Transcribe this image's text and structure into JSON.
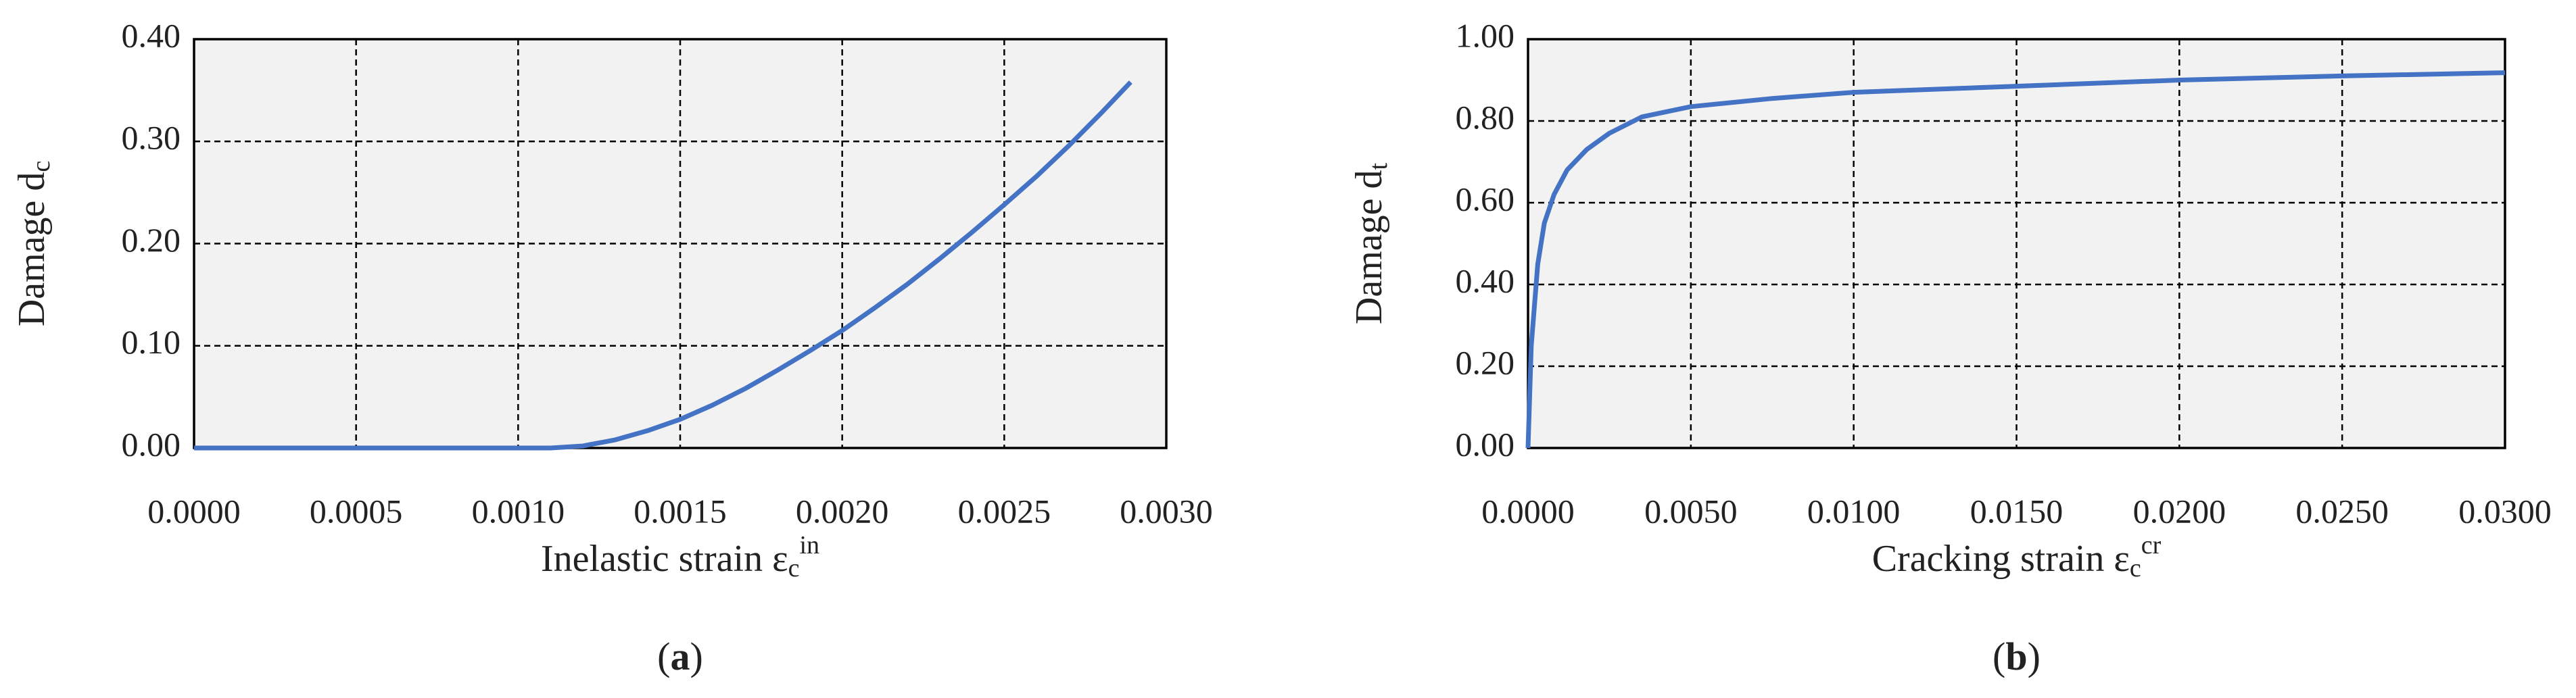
{
  "chart_data": [
    {
      "type": "line",
      "xlabel": [
        "Inelastic strain ε",
        "c",
        "in"
      ],
      "ylabel": [
        "Damage d",
        "c"
      ],
      "panel": [
        "(",
        "a",
        ")"
      ],
      "x": [
        0,
        0.0005,
        0.001,
        0.0011,
        0.0012,
        0.0013,
        0.0014,
        0.0015,
        0.0016,
        0.0017,
        0.0018,
        0.0019,
        0.002,
        0.0021,
        0.0022,
        0.0023,
        0.0024,
        0.0025,
        0.0026,
        0.0027,
        0.0028,
        0.00289
      ],
      "series": [
        {
          "color": "#4472c4",
          "values": [
            0,
            0,
            0,
            0,
            0.002,
            0.008,
            0.017,
            0.028,
            0.042,
            0.058,
            0.076,
            0.095,
            0.115,
            0.137,
            0.16,
            0.185,
            0.211,
            0.238,
            0.266,
            0.296,
            0.328,
            0.358
          ]
        }
      ],
      "xlim": [
        0,
        0.003
      ],
      "xticks": [
        {
          "value": 0,
          "label": "0.0000"
        },
        {
          "value": 0.0005,
          "label": "0.0005"
        },
        {
          "value": 0.001,
          "label": "0.0010"
        },
        {
          "value": 0.0015,
          "label": "0.0015"
        },
        {
          "value": 0.002,
          "label": "0.0020"
        },
        {
          "value": 0.0025,
          "label": "0.0025"
        },
        {
          "value": 0.003,
          "label": "0.0030"
        }
      ],
      "ylim": [
        0,
        0.4
      ],
      "yticks": [
        {
          "value": 0,
          "label": "0.00"
        },
        {
          "value": 0.1,
          "label": "0.10"
        },
        {
          "value": 0.2,
          "label": "0.20"
        },
        {
          "value": 0.3,
          "label": "0.30"
        },
        {
          "value": 0.4,
          "label": "0.40"
        }
      ],
      "grid": true
    },
    {
      "type": "line",
      "xlabel": [
        "Cracking strain ε",
        "c",
        "cr"
      ],
      "ylabel": [
        "Damage d",
        "t"
      ],
      "panel": [
        "(",
        "b",
        ")"
      ],
      "x": [
        0,
        0.0001,
        0.0003,
        0.0005,
        0.0008,
        0.0012,
        0.0018,
        0.0025,
        0.0035,
        0.005,
        0.0075,
        0.01,
        0.015,
        0.02,
        0.025,
        0.03
      ],
      "series": [
        {
          "color": "#4472c4",
          "values": [
            0,
            0.25,
            0.45,
            0.55,
            0.62,
            0.68,
            0.73,
            0.77,
            0.81,
            0.835,
            0.855,
            0.87,
            0.885,
            0.9,
            0.91,
            0.918
          ]
        }
      ],
      "xlim": [
        0,
        0.03
      ],
      "xticks": [
        {
          "value": 0,
          "label": "0.0000"
        },
        {
          "value": 0.005,
          "label": "0.0050"
        },
        {
          "value": 0.01,
          "label": "0.0100"
        },
        {
          "value": 0.015,
          "label": "0.0150"
        },
        {
          "value": 0.02,
          "label": "0.0200"
        },
        {
          "value": 0.025,
          "label": "0.0250"
        },
        {
          "value": 0.03,
          "label": "0.0300"
        }
      ],
      "ylim": [
        0,
        1
      ],
      "yticks": [
        {
          "value": 0,
          "label": "0.00"
        },
        {
          "value": 0.2,
          "label": "0.20"
        },
        {
          "value": 0.4,
          "label": "0.40"
        },
        {
          "value": 0.6,
          "label": "0.60"
        },
        {
          "value": 0.8,
          "label": "0.80"
        },
        {
          "value": 1,
          "label": "1.00"
        }
      ],
      "grid": true
    }
  ]
}
